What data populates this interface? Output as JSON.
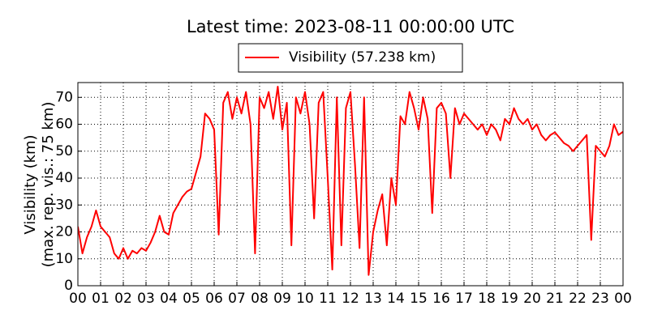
{
  "chart_data": {
    "type": "line",
    "title": "Latest time: 2023-08-11 00:00:00 UTC",
    "ylabel": [
      "Visibility (km)",
      "(max. rep. vis.: 75 km)"
    ],
    "xlim": [
      0,
      24
    ],
    "ylim": [
      0,
      75.5
    ],
    "xticks": [
      {
        "value": 0,
        "label": "00"
      },
      {
        "value": 1,
        "label": "01"
      },
      {
        "value": 2,
        "label": "02"
      },
      {
        "value": 3,
        "label": "03"
      },
      {
        "value": 4,
        "label": "04"
      },
      {
        "value": 5,
        "label": "05"
      },
      {
        "value": 6,
        "label": "06"
      },
      {
        "value": 7,
        "label": "07"
      },
      {
        "value": 8,
        "label": "08"
      },
      {
        "value": 9,
        "label": "09"
      },
      {
        "value": 10,
        "label": "10"
      },
      {
        "value": 11,
        "label": "11"
      },
      {
        "value": 12,
        "label": "12"
      },
      {
        "value": 13,
        "label": "13"
      },
      {
        "value": 14,
        "label": "14"
      },
      {
        "value": 15,
        "label": "15"
      },
      {
        "value": 16,
        "label": "16"
      },
      {
        "value": 17,
        "label": "17"
      },
      {
        "value": 18,
        "label": "18"
      },
      {
        "value": 19,
        "label": "19"
      },
      {
        "value": 20,
        "label": "20"
      },
      {
        "value": 21,
        "label": "21"
      },
      {
        "value": 22,
        "label": "22"
      },
      {
        "value": 23,
        "label": "23"
      },
      {
        "value": 24,
        "label": "00"
      }
    ],
    "yticks": [
      0,
      10,
      20,
      30,
      40,
      50,
      60,
      70
    ],
    "grid": true,
    "x": [
      0,
      0.2,
      0.4,
      0.6,
      0.8,
      1,
      1.2,
      1.4,
      1.6,
      1.8,
      2,
      2.2,
      2.4,
      2.6,
      2.8,
      3,
      3.2,
      3.4,
      3.6,
      3.8,
      4,
      4.2,
      4.4,
      4.6,
      4.8,
      5,
      5.2,
      5.4,
      5.6,
      5.8,
      6,
      6.2,
      6.4,
      6.6,
      6.8,
      7,
      7.2,
      7.4,
      7.6,
      7.8,
      8,
      8.2,
      8.4,
      8.6,
      8.8,
      9,
      9.2,
      9.4,
      9.6,
      9.8,
      10,
      10.2,
      10.4,
      10.6,
      10.8,
      11,
      11.2,
      11.4,
      11.6,
      11.8,
      12,
      12.2,
      12.4,
      12.6,
      12.8,
      13,
      13.2,
      13.4,
      13.6,
      13.8,
      14,
      14.2,
      14.4,
      14.6,
      14.8,
      15,
      15.2,
      15.4,
      15.6,
      15.8,
      16,
      16.2,
      16.4,
      16.6,
      16.8,
      17,
      17.2,
      17.4,
      17.6,
      17.8,
      18,
      18.2,
      18.4,
      18.6,
      18.8,
      19,
      19.2,
      19.4,
      19.6,
      19.8,
      20,
      20.2,
      20.4,
      20.6,
      20.8,
      21,
      21.2,
      21.4,
      21.6,
      21.8,
      22,
      22.2,
      22.4,
      22.6,
      22.8,
      23,
      23.2,
      23.4,
      23.6,
      23.8,
      24
    ],
    "series": [
      {
        "name": "Visibility (57.238 km)",
        "color": "#ff0000",
        "values": [
          22,
          12,
          18,
          22,
          28,
          22,
          20,
          18,
          12,
          10,
          14,
          10,
          13,
          12,
          14,
          13,
          16,
          20,
          26,
          20,
          19,
          27,
          30,
          33,
          35,
          36,
          42,
          48,
          64,
          62,
          58,
          19,
          68,
          72,
          62,
          70,
          64,
          72,
          60,
          12,
          70,
          66,
          72,
          62,
          74,
          58,
          68,
          15,
          70,
          64,
          72,
          60,
          25,
          68,
          72,
          40,
          6,
          70,
          15,
          66,
          72,
          45,
          14,
          70,
          4,
          20,
          28,
          34,
          15,
          40,
          30,
          63,
          60,
          72,
          66,
          58,
          70,
          62,
          27,
          66,
          68,
          64,
          40,
          66,
          60,
          64,
          62,
          60,
          58,
          60,
          56,
          60,
          58,
          54,
          62,
          60,
          66,
          62,
          60,
          62,
          58,
          60,
          56,
          54,
          56,
          57,
          55,
          53,
          52,
          50,
          52,
          54,
          56,
          17,
          52,
          50,
          48,
          52,
          60,
          56,
          57.238
        ]
      }
    ]
  }
}
